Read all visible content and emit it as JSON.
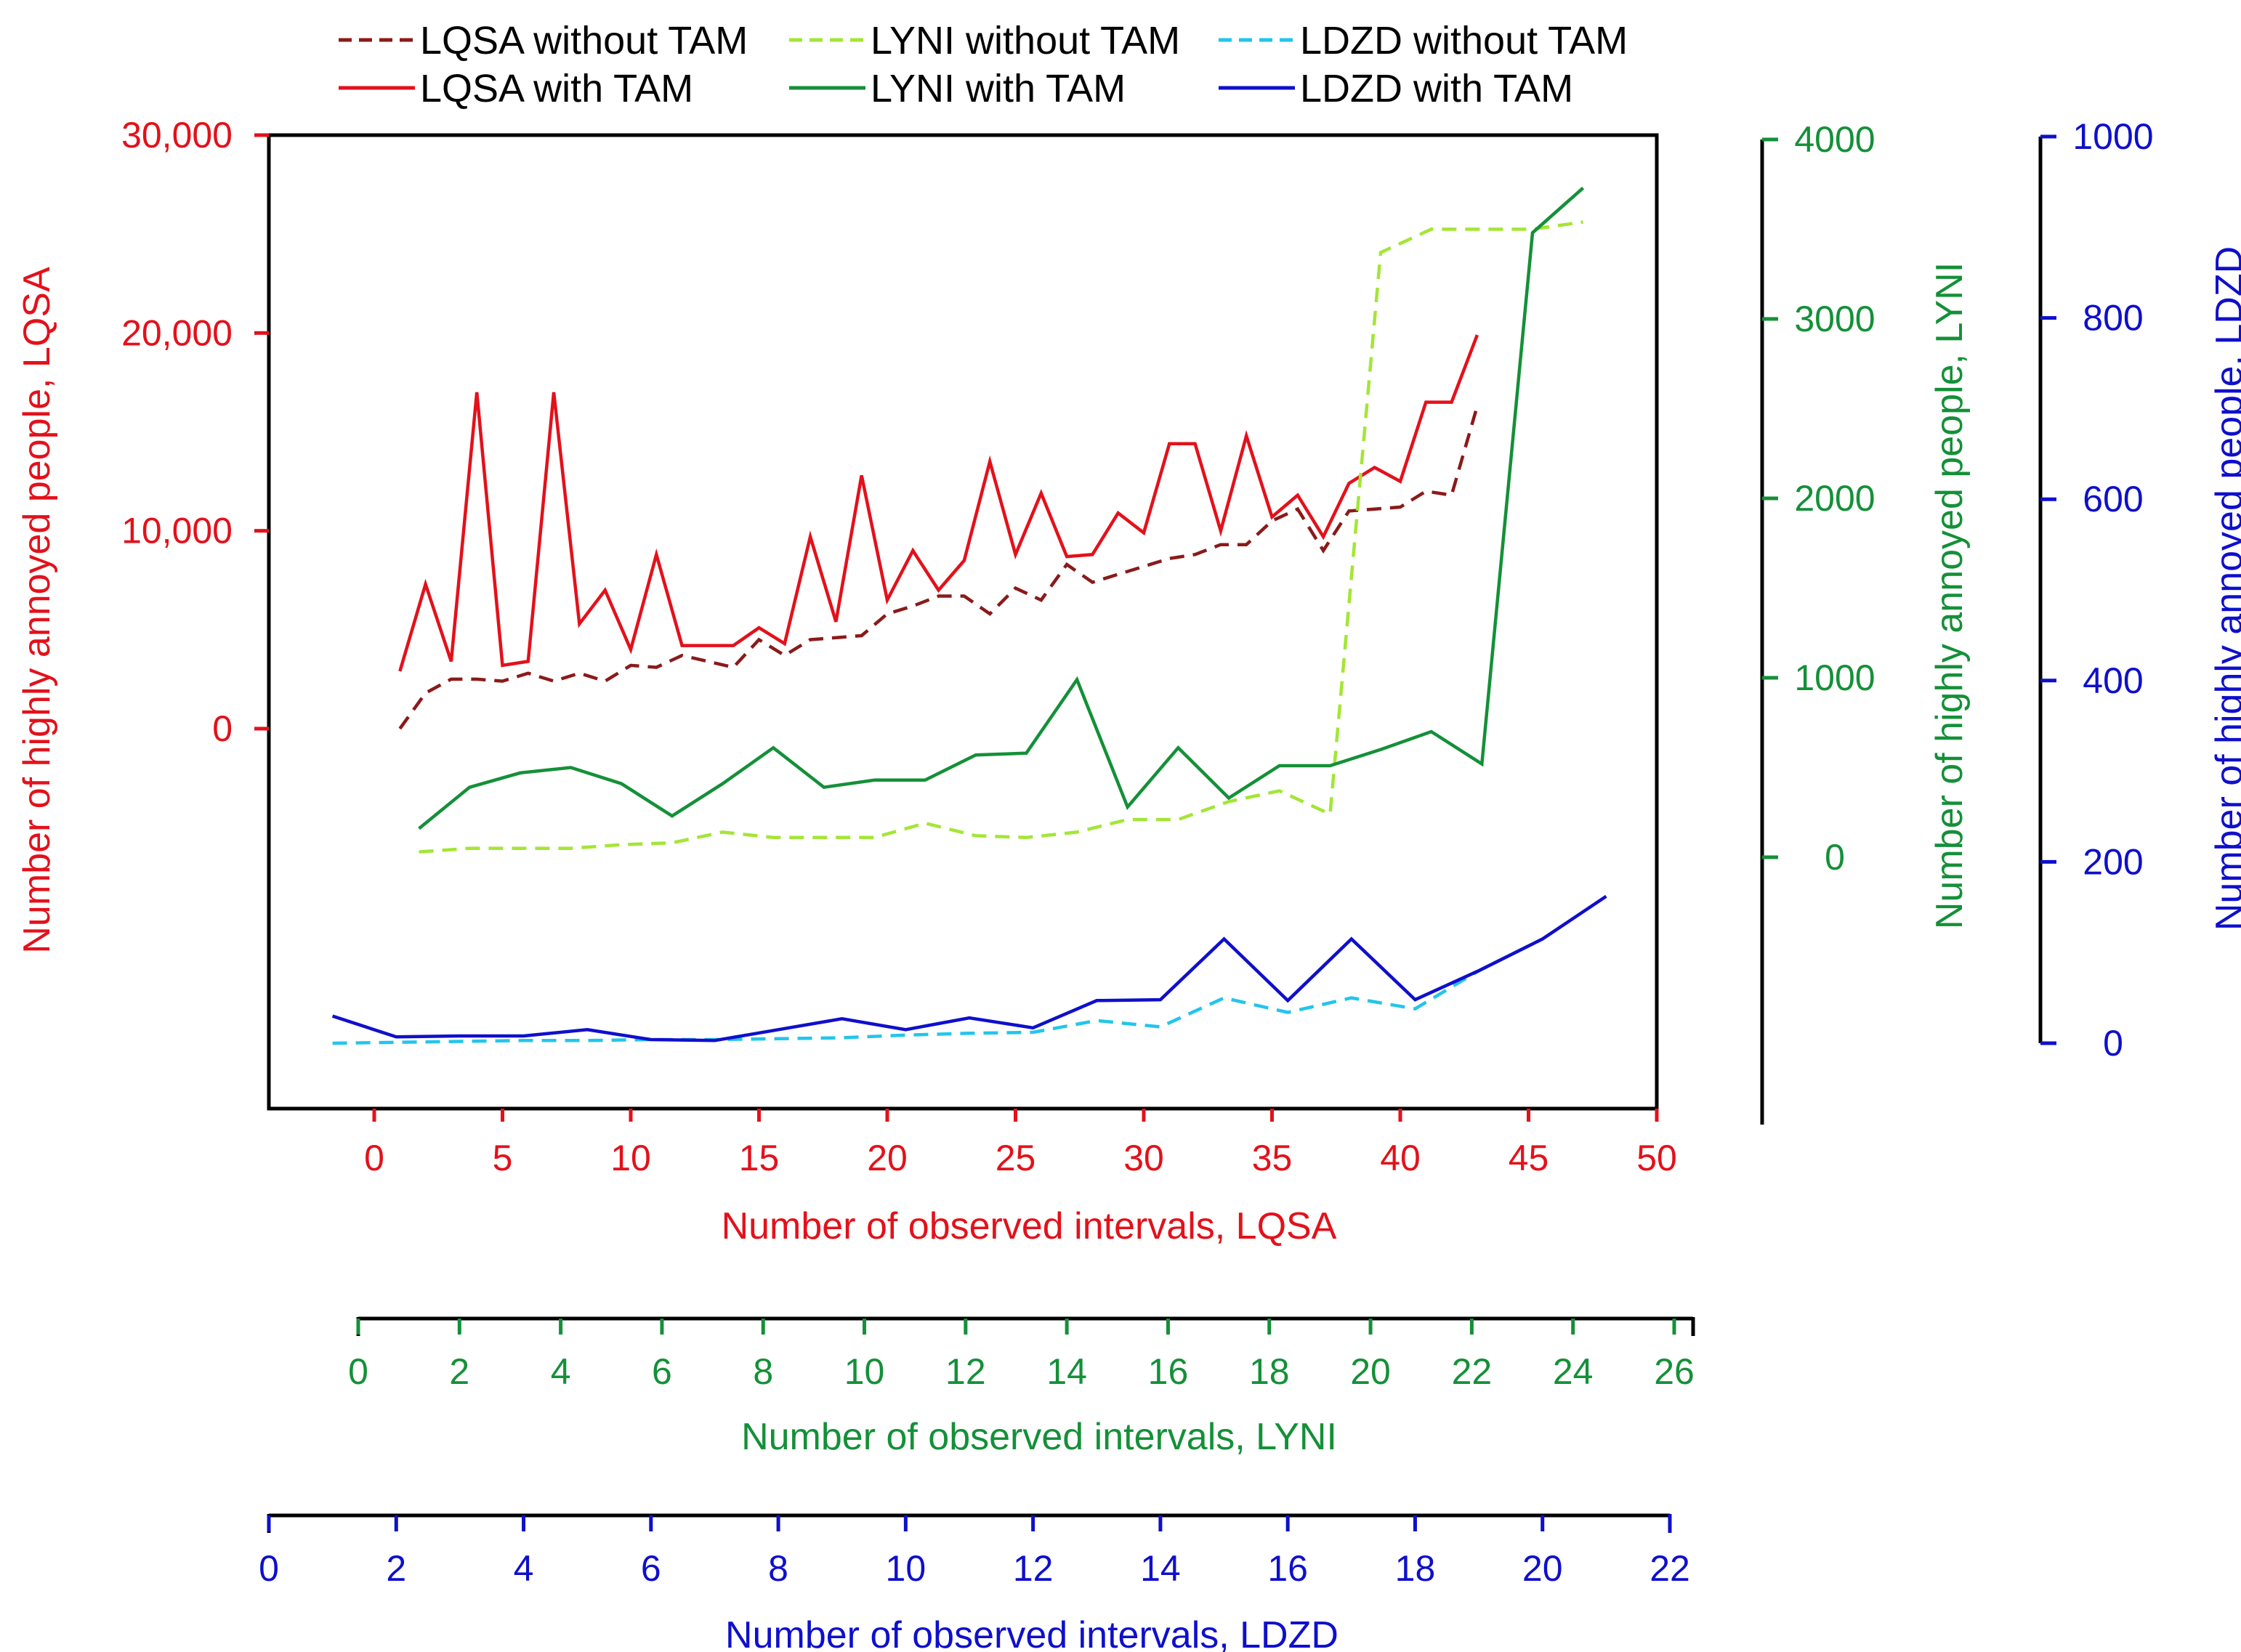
{
  "chart_data": {
    "type": "line",
    "colors": {
      "lqsa": "#e3111b",
      "lqsa_dark": "#8b1a1a",
      "lyni": "#149038",
      "lyni_light": "#a3e635",
      "ldzd": "#0f0fcc",
      "ldzd_light": "#22c5ec"
    },
    "legend": {
      "placement": "top",
      "entries": [
        {
          "label": "LQSA without TAM",
          "color": "#8b1a1a",
          "dashed": true
        },
        {
          "label": "LYNI without TAM",
          "color": "#a3e635",
          "dashed": true
        },
        {
          "label": "LDZD without TAM",
          "color": "#22c5ec",
          "dashed": true
        },
        {
          "label": "LQSA with TAM",
          "color": "#e3111b",
          "dashed": false
        },
        {
          "label": "LYNI with TAM",
          "color": "#149038",
          "dashed": false
        },
        {
          "label": "LDZD with TAM",
          "color": "#0f0fcc",
          "dashed": false
        }
      ]
    },
    "axes": {
      "x_lqsa": {
        "label": "Number of observed intervals, LQSA",
        "range": [
          -4,
          50
        ],
        "ticks": [
          0,
          5,
          10,
          15,
          20,
          25,
          30,
          35,
          40,
          45,
          50
        ],
        "tick_labels": [
          "0",
          "5",
          "10",
          "15",
          "20",
          "25",
          "30",
          "35",
          "40",
          "45",
          "50"
        ]
      },
      "x_lyni": {
        "label": "Number of observed intervals, LYNI",
        "range": [
          0,
          26
        ],
        "ticks": [
          0,
          2,
          4,
          6,
          8,
          10,
          12,
          14,
          16,
          18,
          20,
          22,
          24,
          26
        ],
        "tick_labels": [
          "0",
          "2",
          "4",
          "6",
          "8",
          "10",
          "12",
          "14",
          "16",
          "18",
          "20",
          "22",
          "24",
          "26"
        ]
      },
      "x_ldzd": {
        "label": "Number of observed intervals, LDZD",
        "range": [
          0,
          22
        ],
        "ticks": [
          0,
          2,
          4,
          6,
          8,
          10,
          12,
          14,
          16,
          18,
          20,
          22
        ],
        "tick_labels": [
          "0",
          "2",
          "4",
          "6",
          "8",
          "10",
          "12",
          "14",
          "16",
          "18",
          "20",
          "22"
        ]
      },
      "y_lqsa": {
        "label": "Number of highly annoyed people, LQSA",
        "range": [
          -19000,
          30000
        ],
        "ticks": [
          0,
          10000,
          20000,
          30000
        ],
        "tick_labels": [
          "0",
          "10,000",
          "20,000",
          "30,000"
        ]
      },
      "y_lyni": {
        "label": "Number of highly annoyed people, LYNI",
        "range": [
          -1500,
          4000
        ],
        "ticks": [
          0,
          1000,
          2000,
          3000,
          4000
        ],
        "tick_labels": [
          "0",
          "1000",
          "2000",
          "3000",
          "4000"
        ]
      },
      "y_ldzd": {
        "label": "Number of highly annoyed people, LDZD",
        "range": [
          0,
          1000
        ],
        "ticks": [
          0,
          200,
          400,
          600,
          800,
          1000
        ],
        "tick_labels": [
          "0",
          "200",
          "400",
          "600",
          "800",
          "1000"
        ]
      }
    },
    "series": [
      {
        "name": "LQSA without TAM",
        "xaxis": "x_lqsa",
        "yaxis": "y_lqsa",
        "color": "#8b1a1a",
        "dashed": true,
        "x": [
          1,
          2,
          3,
          4,
          5,
          6,
          7,
          8,
          9,
          10,
          11,
          12,
          13,
          14,
          15,
          16,
          17,
          18,
          19,
          20,
          21,
          22,
          23,
          24,
          25,
          26,
          27,
          28,
          29,
          30,
          31,
          32,
          33,
          34,
          35,
          36,
          37,
          38,
          39,
          40,
          41,
          42,
          43
        ],
        "values": [
          0,
          1800,
          2500,
          2500,
          2400,
          2800,
          2400,
          2800,
          2400,
          3200,
          3100,
          3700,
          3400,
          3100,
          4500,
          3700,
          4500,
          4600,
          4700,
          5800,
          6200,
          6700,
          6700,
          5800,
          7100,
          6500,
          8300,
          7400,
          7800,
          8200,
          8600,
          8800,
          9300,
          9300,
          10500,
          11100,
          9000,
          11000,
          11100,
          11200,
          12000,
          11800,
          16300
        ]
      },
      {
        "name": "LQSA with TAM",
        "xaxis": "x_lqsa",
        "yaxis": "y_lqsa",
        "color": "#e3111b",
        "dashed": false,
        "x": [
          1,
          2,
          3,
          4,
          5,
          6,
          7,
          8,
          9,
          10,
          11,
          12,
          13,
          14,
          15,
          16,
          17,
          18,
          19,
          20,
          21,
          22,
          23,
          24,
          25,
          26,
          27,
          28,
          29,
          30,
          31,
          32,
          33,
          34,
          35,
          36,
          37,
          38,
          39,
          40,
          41,
          42,
          43
        ],
        "values": [
          2900,
          7300,
          3400,
          17000,
          3200,
          3400,
          17000,
          5300,
          7000,
          4000,
          8800,
          4200,
          4200,
          4200,
          5100,
          4300,
          9700,
          5400,
          12800,
          6500,
          9000,
          7000,
          8500,
          13500,
          8800,
          11900,
          8700,
          8800,
          10900,
          9900,
          14400,
          14400,
          10000,
          14800,
          10700,
          11800,
          9700,
          12400,
          13200,
          12500,
          16500,
          16500,
          19900
        ]
      },
      {
        "name": "LYNI without TAM",
        "xaxis": "x_lyni",
        "yaxis": "y_lyni",
        "color": "#a3e635",
        "dashed": true,
        "x": [
          1.2,
          2.2,
          3.2,
          4.2,
          5.2,
          6.2,
          7.2,
          8.2,
          9.2,
          10.2,
          11.2,
          12.2,
          13.2,
          14.2,
          15.2,
          16.2,
          17.2,
          18.2,
          19.2,
          20.2,
          21.2,
          22.2,
          23.2,
          24.2
        ],
        "values": [
          30,
          50,
          50,
          50,
          70,
          80,
          140,
          110,
          110,
          110,
          190,
          120,
          110,
          140,
          210,
          210,
          310,
          370,
          240,
          3370,
          3500,
          3500,
          3500,
          3540
        ]
      },
      {
        "name": "LYNI with TAM",
        "xaxis": "x_lyni",
        "yaxis": "y_lyni",
        "color": "#149038",
        "dashed": false,
        "x": [
          1.2,
          2.2,
          3.2,
          4.2,
          5.2,
          6.2,
          7.2,
          8.2,
          9.2,
          10.2,
          11.2,
          12.2,
          13.2,
          14.2,
          15.2,
          16.2,
          17.2,
          18.2,
          19.2,
          20.2,
          21.2,
          22.2,
          23.2,
          24.2
        ],
        "values": [
          160,
          390,
          470,
          500,
          410,
          230,
          410,
          610,
          390,
          430,
          430,
          570,
          580,
          990,
          280,
          610,
          330,
          510,
          510,
          600,
          700,
          520,
          3480,
          3730
        ]
      },
      {
        "name": "LDZD without TAM",
        "xaxis": "x_ldzd",
        "yaxis": "y_ldzd",
        "color": "#22c5ec",
        "dashed": true,
        "x": [
          1,
          2,
          3,
          4,
          5,
          6,
          7,
          8,
          9,
          10,
          11,
          12,
          13,
          14,
          15,
          16,
          17,
          18,
          19,
          20
        ],
        "values": [
          0,
          1,
          2,
          3,
          3,
          4,
          4,
          5,
          6,
          9,
          11,
          12,
          25,
          18,
          50,
          34,
          50,
          38,
          80,
          115
        ]
      },
      {
        "name": "LDZD with TAM",
        "xaxis": "x_ldzd",
        "yaxis": "y_ldzd",
        "color": "#0f0fcc",
        "dashed": false,
        "x": [
          1,
          2,
          3,
          4,
          5,
          6,
          7,
          8,
          9,
          10,
          11,
          12,
          13,
          14,
          15,
          16,
          17,
          18,
          19,
          20,
          21
        ],
        "values": [
          30,
          7,
          8,
          8,
          15,
          4,
          3,
          15,
          27,
          15,
          28,
          17,
          47,
          48,
          115,
          47,
          115,
          48,
          80,
          115,
          162
        ]
      }
    ]
  }
}
